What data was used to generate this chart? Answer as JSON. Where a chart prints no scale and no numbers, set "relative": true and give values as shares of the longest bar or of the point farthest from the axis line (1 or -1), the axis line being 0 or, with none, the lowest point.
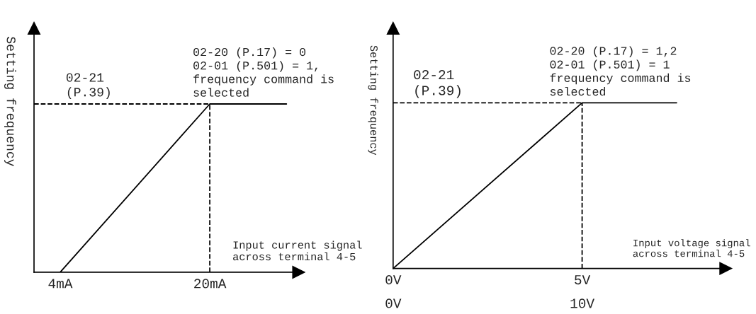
{
  "chart_data": [
    {
      "type": "line",
      "relative": true,
      "xlabel": "Input current signal\nacross terminal 4-5",
      "ylabel": "Setting frequency",
      "xlim": [
        1.2,
        29.5
      ],
      "xticks": [
        {
          "value": 4,
          "label": "4mA"
        },
        {
          "value": 20,
          "label": "20mA"
        }
      ],
      "series": [
        {
          "color": "#000000",
          "x": [
            4,
            20,
            28.2
          ],
          "values": [
            0,
            1,
            1
          ],
          "line_style": "solid"
        },
        {
          "color": "#000000",
          "x": [
            1.2,
            20
          ],
          "values": [
            1,
            1
          ],
          "line_style": "dashed"
        },
        {
          "color": "#000000",
          "x": [
            20,
            20
          ],
          "values": [
            0,
            1
          ],
          "line_style": "dashed"
        }
      ],
      "annotations": [
        "02-21\n(P.39)",
        "02-20 (P.17) = 0\n02-01 (P.501) = 1,\nfrequency command is\nselected"
      ]
    },
    {
      "type": "line",
      "relative": true,
      "xlabel": "Input voltage signal\nacross terminal 4-5",
      "ylabel": "Setting frequency",
      "xlim": [
        0,
        8.8
      ],
      "xticks": [
        {
          "value": 0,
          "label": "0V"
        },
        {
          "value": 5,
          "label": "5V"
        }
      ],
      "series": [
        {
          "color": "#000000",
          "x": [
            0,
            5,
            7.5
          ],
          "values": [
            0,
            1,
            1
          ],
          "line_style": "solid"
        },
        {
          "color": "#000000",
          "x": [
            0,
            5
          ],
          "values": [
            1,
            1
          ],
          "line_style": "dashed"
        },
        {
          "color": "#000000",
          "x": [
            5,
            5
          ],
          "values": [
            0,
            1
          ],
          "line_style": "dashed"
        }
      ],
      "annotations": [
        "02-21\n(P.39)",
        "02-20 (P.17) = 1,2\n02-01 (P.501) = 1\nfrequency command is\nselected",
        "0V",
        "10V"
      ]
    }
  ]
}
